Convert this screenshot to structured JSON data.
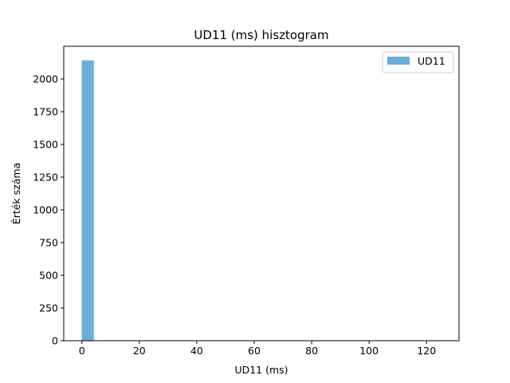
{
  "chart_data": {
    "type": "bar",
    "title": "UD11 (ms) hisztogram",
    "xlabel": "UD11 (ms)",
    "ylabel": "Érték száma",
    "xlim": [
      -6.3,
      131.3
    ],
    "ylim": [
      0,
      2250
    ],
    "xticks": [
      0,
      20,
      40,
      60,
      80,
      100,
      120
    ],
    "yticks": [
      0,
      250,
      500,
      750,
      1000,
      1250,
      1500,
      1750,
      2000
    ],
    "legend_position": "top-right",
    "grid": false,
    "series": [
      {
        "name": "UD11",
        "color": "#6baed6",
        "edge_color": "#a6cee3",
        "bins": [
          {
            "x0": 0.0,
            "x1": 4.17,
            "count": 2141
          },
          {
            "x0": 4.17,
            "x1": 8.33,
            "count": 0
          },
          {
            "x0": 8.33,
            "x1": 12.5,
            "count": 0
          },
          {
            "x0": 12.5,
            "x1": 16.67,
            "count": 0
          },
          {
            "x0": 16.67,
            "x1": 20.83,
            "count": 0
          },
          {
            "x0": 20.83,
            "x1": 25.0,
            "count": 0
          },
          {
            "x0": 25.0,
            "x1": 29.17,
            "count": 0
          },
          {
            "x0": 29.17,
            "x1": 33.33,
            "count": 0
          },
          {
            "x0": 33.33,
            "x1": 37.5,
            "count": 0
          },
          {
            "x0": 37.5,
            "x1": 41.67,
            "count": 0
          },
          {
            "x0": 41.67,
            "x1": 45.83,
            "count": 0
          },
          {
            "x0": 45.83,
            "x1": 50.0,
            "count": 0
          },
          {
            "x0": 50.0,
            "x1": 54.17,
            "count": 0
          },
          {
            "x0": 54.17,
            "x1": 58.33,
            "count": 0
          },
          {
            "x0": 58.33,
            "x1": 62.5,
            "count": 0
          },
          {
            "x0": 62.5,
            "x1": 66.67,
            "count": 0
          },
          {
            "x0": 66.67,
            "x1": 70.83,
            "count": 0
          },
          {
            "x0": 70.83,
            "x1": 75.0,
            "count": 0
          },
          {
            "x0": 75.0,
            "x1": 79.17,
            "count": 0
          },
          {
            "x0": 79.17,
            "x1": 83.33,
            "count": 0
          },
          {
            "x0": 83.33,
            "x1": 87.5,
            "count": 0
          },
          {
            "x0": 87.5,
            "x1": 91.67,
            "count": 0
          },
          {
            "x0": 91.67,
            "x1": 95.83,
            "count": 0
          },
          {
            "x0": 95.83,
            "x1": 100.0,
            "count": 0
          },
          {
            "x0": 100.0,
            "x1": 104.17,
            "count": 0
          },
          {
            "x0": 104.17,
            "x1": 108.33,
            "count": 0
          },
          {
            "x0": 108.33,
            "x1": 112.5,
            "count": 0
          },
          {
            "x0": 112.5,
            "x1": 116.67,
            "count": 0
          },
          {
            "x0": 116.67,
            "x1": 120.83,
            "count": 0
          },
          {
            "x0": 120.83,
            "x1": 125.0,
            "count": 1
          }
        ]
      }
    ]
  }
}
